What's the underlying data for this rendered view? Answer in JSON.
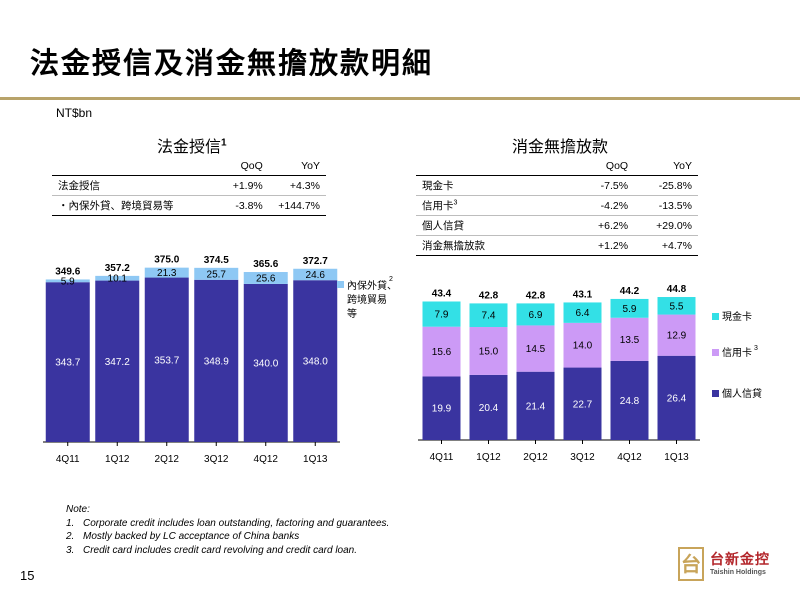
{
  "header": {
    "title": "法金授信及消金無擔放款明細",
    "unit": "NT$bn"
  },
  "colors": {
    "rule": "#b8a36a",
    "dark": "#3a34a0",
    "light": "#8ec8f4",
    "cyan": "#33e0e6",
    "lilac": "#cc9af6"
  },
  "corporate": {
    "title": "法金授信",
    "title_sup": "1",
    "table": {
      "headers": [
        "",
        "QoQ",
        "YoY"
      ],
      "rows": [
        {
          "label": "法金授信",
          "qoq": "+1.9%",
          "yoy": "+4.3%"
        },
        {
          "label": "・內保外貸、跨境貿易等",
          "qoq": "-3.8%",
          "yoy": "+144.7%"
        }
      ]
    }
  },
  "consumer": {
    "title": "消金無擔放款",
    "table": {
      "headers": [
        "",
        "QoQ",
        "YoY"
      ],
      "rows": [
        {
          "label": "現金卡",
          "sup": "",
          "qoq": "-7.5%",
          "yoy": "-25.8%"
        },
        {
          "label": "信用卡",
          "sup": "3",
          "qoq": "-4.2%",
          "yoy": "-13.5%"
        },
        {
          "label": "個人信貸",
          "sup": "",
          "qoq": "+6.2%",
          "yoy": "+29.0%"
        },
        {
          "label": "消金無擔放款",
          "sup": "",
          "qoq": "+1.2%",
          "yoy": "+4.7%"
        }
      ]
    }
  },
  "chart_data": [
    {
      "type": "bar",
      "stacked": true,
      "categories": [
        "4Q11",
        "1Q12",
        "2Q12",
        "3Q12",
        "4Q12",
        "1Q13"
      ],
      "series": [
        {
          "name": "",
          "values": [
            343.7,
            347.2,
            353.7,
            348.9,
            340.0,
            348.0
          ],
          "color": "#3a34a0",
          "label_color": "#ffffff"
        },
        {
          "name": "內保外貸、跨境貿易等",
          "legend_lines": [
            "內保外貸、",
            "跨境貿易",
            "等"
          ],
          "sup": "2",
          "values": [
            5.9,
            10.1,
            21.3,
            25.7,
            25.6,
            24.6
          ],
          "color": "#8ec8f4",
          "label_color": "#000000"
        }
      ],
      "totals": [
        349.6,
        357.2,
        375.0,
        374.5,
        365.6,
        372.7
      ],
      "legend": "right"
    },
    {
      "type": "bar",
      "stacked": true,
      "categories": [
        "4Q11",
        "1Q12",
        "2Q12",
        "3Q12",
        "4Q12",
        "1Q13"
      ],
      "series": [
        {
          "name": "個人信貸",
          "values": [
            19.9,
            20.4,
            21.4,
            22.7,
            24.8,
            26.4
          ],
          "color": "#3a34a0",
          "label_color": "#ffffff"
        },
        {
          "name": "信用卡",
          "sup": "3",
          "values": [
            15.6,
            15.0,
            14.5,
            14.0,
            13.5,
            12.9
          ],
          "color": "#cc9af6",
          "label_color": "#000000"
        },
        {
          "name": "現金卡",
          "values": [
            7.9,
            7.4,
            6.9,
            6.4,
            5.9,
            5.5
          ],
          "color": "#33e0e6",
          "label_color": "#000000"
        }
      ],
      "totals": [
        43.4,
        42.8,
        42.8,
        43.1,
        44.2,
        44.8
      ],
      "legend": "right"
    }
  ],
  "notes": {
    "heading": "Note:",
    "items": [
      {
        "num": "1.",
        "text": "Corporate credit includes loan outstanding, factoring and guarantees."
      },
      {
        "num": "2.",
        "text": "Mostly backed by LC acceptance of China banks"
      },
      {
        "num": "3.",
        "text": "Credit card includes credit card revolving and credit card loan."
      }
    ]
  },
  "footer": {
    "page": "15",
    "logo_mark": "台",
    "logo_name": "台新金控",
    "logo_en": "Taishin Holdings"
  }
}
